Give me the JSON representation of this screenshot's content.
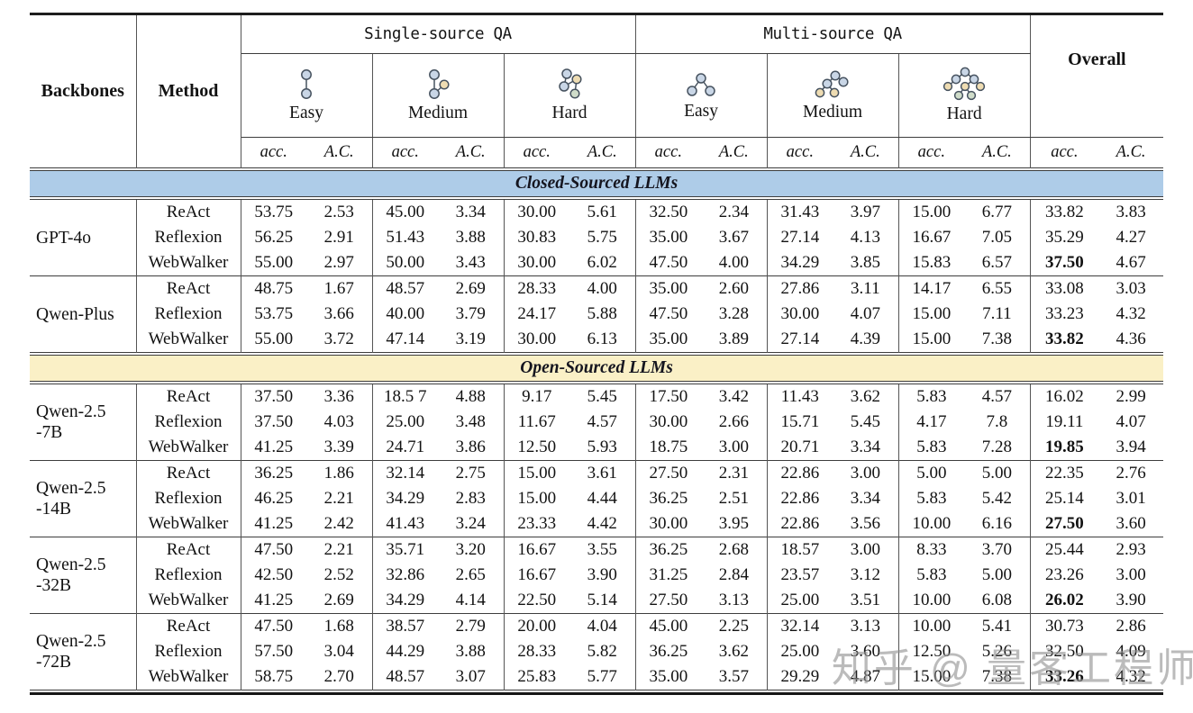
{
  "table": {
    "header": {
      "backbones": "Backbones",
      "method": "Method",
      "single_source": "Single-source QA",
      "multi_source": "Multi-source QA",
      "overall": "Overall",
      "difficulties": [
        "Easy",
        "Medium",
        "Hard"
      ],
      "acc": "acc.",
      "ac": "A.C."
    },
    "icons": {
      "single_source": [
        "chain-2-node-graph",
        "chain-3-node-graph",
        "chain-4-node-graph"
      ],
      "multi_source": [
        "tree-3-node-graph",
        "tree-5-node-graph",
        "tree-8-node-graph"
      ],
      "node_colors": {
        "blue": "#c9d6e6",
        "tan": "#eedcb2",
        "green": "#cfdcc9"
      }
    },
    "sections": [
      {
        "title": "Closed-Sourced LLMs",
        "color": "#aecce8",
        "groups": [
          {
            "backbone": "GPT-4o",
            "rows": [
              {
                "method": "ReAct",
                "values": [
                  "53.75",
                  "2.53",
                  "45.00",
                  "3.34",
                  "30.00",
                  "5.61",
                  "32.50",
                  "2.34",
                  "31.43",
                  "3.97",
                  "15.00",
                  "6.77",
                  "33.82",
                  "3.83"
                ]
              },
              {
                "method": "Reflexion",
                "values": [
                  "56.25",
                  "2.91",
                  "51.43",
                  "3.88",
                  "30.83",
                  "5.75",
                  "35.00",
                  "3.67",
                  "27.14",
                  "4.13",
                  "16.67",
                  "7.05",
                  "35.29",
                  "4.27"
                ]
              },
              {
                "method": "WebWalker",
                "values": [
                  "55.00",
                  "2.97",
                  "50.00",
                  "3.43",
                  "30.00",
                  "6.02",
                  "47.50",
                  "4.00",
                  "34.29",
                  "3.85",
                  "15.83",
                  "6.57",
                  "37.50",
                  "4.67"
                ],
                "bold": [
                  12
                ]
              }
            ]
          },
          {
            "backbone": "Qwen-Plus",
            "rows": [
              {
                "method": "ReAct",
                "values": [
                  "48.75",
                  "1.67",
                  "48.57",
                  "2.69",
                  "28.33",
                  "4.00",
                  "35.00",
                  "2.60",
                  "27.86",
                  "3.11",
                  "14.17",
                  "6.55",
                  "33.08",
                  "3.03"
                ]
              },
              {
                "method": "Reflexion",
                "values": [
                  "53.75",
                  "3.66",
                  "40.00",
                  "3.79",
                  "24.17",
                  "5.88",
                  "47.50",
                  "3.28",
                  "30.00",
                  "4.07",
                  "15.00",
                  "7.11",
                  "33.23",
                  "4.32"
                ]
              },
              {
                "method": "WebWalker",
                "values": [
                  "55.00",
                  "3.72",
                  "47.14",
                  "3.19",
                  "30.00",
                  "6.13",
                  "35.00",
                  "3.89",
                  "27.14",
                  "4.39",
                  "15.00",
                  "7.38",
                  "33.82",
                  "4.36"
                ],
                "bold": [
                  12
                ]
              }
            ]
          }
        ]
      },
      {
        "title": "Open-Sourced LLMs",
        "color": "#faf0c6",
        "groups": [
          {
            "backbone": "Qwen-2.5\n-7B",
            "rows": [
              {
                "method": "ReAct",
                "values": [
                  "37.50",
                  "3.36",
                  "18.5 7",
                  "4.88",
                  "9.17",
                  "5.45",
                  "17.50",
                  "3.42",
                  "11.43",
                  "3.62",
                  "5.83",
                  "4.57",
                  "16.02",
                  "2.99"
                ]
              },
              {
                "method": "Reflexion",
                "values": [
                  "37.50",
                  "4.03",
                  "25.00",
                  "3.48",
                  "11.67",
                  "4.57",
                  "30.00",
                  "2.66",
                  "15.71",
                  "5.45",
                  "4.17",
                  "7.8",
                  "19.11",
                  "4.07"
                ]
              },
              {
                "method": "WebWalker",
                "values": [
                  "41.25",
                  "3.39",
                  "24.71",
                  "3.86",
                  "12.50",
                  "5.93",
                  "18.75",
                  "3.00",
                  "20.71",
                  "3.34",
                  "5.83",
                  "7.28",
                  "19.85",
                  "3.94"
                ],
                "bold": [
                  12
                ]
              }
            ]
          },
          {
            "backbone": "Qwen-2.5\n-14B",
            "rows": [
              {
                "method": "ReAct",
                "values": [
                  "36.25",
                  "1.86",
                  "32.14",
                  "2.75",
                  "15.00",
                  "3.61",
                  "27.50",
                  "2.31",
                  "22.86",
                  "3.00",
                  "5.00",
                  "5.00",
                  "22.35",
                  "2.76"
                ]
              },
              {
                "method": "Reflexion",
                "values": [
                  "46.25",
                  "2.21",
                  "34.29",
                  "2.83",
                  "15.00",
                  "4.44",
                  "36.25",
                  "2.51",
                  "22.86",
                  "3.34",
                  "5.83",
                  "5.42",
                  "25.14",
                  "3.01"
                ]
              },
              {
                "method": "WebWalker",
                "values": [
                  "41.25",
                  "2.42",
                  "41.43",
                  "3.24",
                  "23.33",
                  "4.42",
                  "30.00",
                  "3.95",
                  "22.86",
                  "3.56",
                  "10.00",
                  "6.16",
                  "27.50",
                  "3.60"
                ],
                "bold": [
                  12
                ]
              }
            ]
          },
          {
            "backbone": "Qwen-2.5\n-32B",
            "rows": [
              {
                "method": "ReAct",
                "values": [
                  "47.50",
                  "2.21",
                  "35.71",
                  "3.20",
                  "16.67",
                  "3.55",
                  "36.25",
                  "2.68",
                  "18.57",
                  "3.00",
                  "8.33",
                  "3.70",
                  "25.44",
                  "2.93"
                ]
              },
              {
                "method": "Reflexion",
                "values": [
                  "42.50",
                  "2.52",
                  "32.86",
                  "2.65",
                  "16.67",
                  "3.90",
                  "31.25",
                  "2.84",
                  "23.57",
                  "3.12",
                  "5.83",
                  "5.00",
                  "23.26",
                  "3.00"
                ]
              },
              {
                "method": "WebWalker",
                "values": [
                  "41.25",
                  "2.69",
                  "34.29",
                  "4.14",
                  "22.50",
                  "5.14",
                  "27.50",
                  "3.13",
                  "25.00",
                  "3.51",
                  "10.00",
                  "6.08",
                  "26.02",
                  "3.90"
                ],
                "bold": [
                  12
                ]
              }
            ]
          },
          {
            "backbone": "Qwen-2.5\n-72B",
            "rows": [
              {
                "method": "ReAct",
                "values": [
                  "47.50",
                  "1.68",
                  "38.57",
                  "2.79",
                  "20.00",
                  "4.04",
                  "45.00",
                  "2.25",
                  "32.14",
                  "3.13",
                  "10.00",
                  "5.41",
                  "30.73",
                  "2.86"
                ]
              },
              {
                "method": "Reflexion",
                "values": [
                  "57.50",
                  "3.04",
                  "44.29",
                  "3.88",
                  "28.33",
                  "5.82",
                  "36.25",
                  "3.62",
                  "25.00",
                  "3.60",
                  "12.50",
                  "5.26",
                  "32.50",
                  "4.09"
                ]
              },
              {
                "method": "WebWalker",
                "values": [
                  "58.75",
                  "2.70",
                  "48.57",
                  "3.07",
                  "25.83",
                  "5.77",
                  "35.00",
                  "3.57",
                  "29.29",
                  "4.87",
                  "15.00",
                  "7.38",
                  "33.26",
                  "4.32"
                ],
                "bold": [
                  12
                ]
              }
            ]
          }
        ]
      }
    ]
  },
  "watermark": {
    "text": "知乎 @ 量客工程师"
  }
}
